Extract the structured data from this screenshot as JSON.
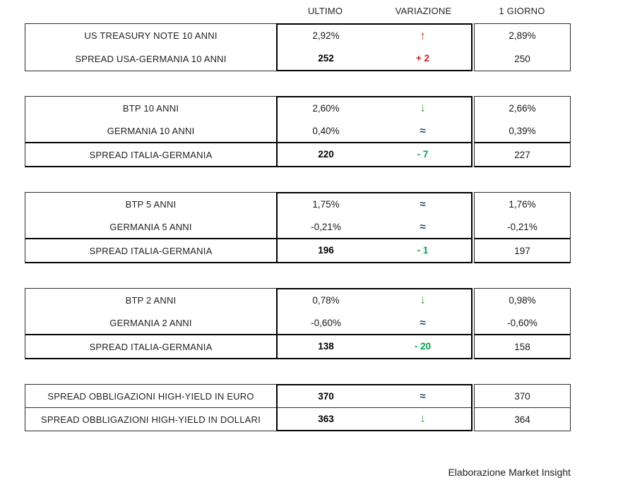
{
  "header": {
    "columns": [
      "ULTIMO",
      "VARIAZIONE",
      "1 GIORNO"
    ]
  },
  "colors": {
    "red": "#c9211e",
    "green": "#00a050",
    "green_arrow": "#3fa257",
    "blue": "#1f4e79"
  },
  "symbols": {
    "up": "↑",
    "down": "↓",
    "approx": "≈"
  },
  "blocks": [
    {
      "divider": false,
      "rows": [
        {
          "label": "US TREASURY NOTE 10 ANNI",
          "ultimo": "2,92%",
          "ultimo_bold": false,
          "var": "↑",
          "var_kind": "up",
          "var_color": "red",
          "giorno": "2,89%",
          "spread": false
        },
        {
          "label": "SPREAD USA-GERMANIA 10 ANNI",
          "ultimo": "252",
          "ultimo_bold": true,
          "var": "+ 2",
          "var_kind": "text",
          "var_color": "red",
          "giorno": "250",
          "spread": false
        }
      ]
    },
    {
      "divider": false,
      "rows": [
        {
          "label": "BTP 10 ANNI",
          "ultimo": "2,60%",
          "ultimo_bold": false,
          "var": "↓",
          "var_kind": "down",
          "var_color": "green_arrow",
          "giorno": "2,66%",
          "spread": false
        },
        {
          "label": "GERMANIA 10 ANNI",
          "ultimo": "0,40%",
          "ultimo_bold": false,
          "var": "≈",
          "var_kind": "approx",
          "var_color": "blue",
          "giorno": "0,39%",
          "spread": false
        },
        {
          "label": "SPREAD ITALIA-GERMANIA",
          "ultimo": "220",
          "ultimo_bold": true,
          "var": "- 7",
          "var_kind": "text",
          "var_color": "green",
          "giorno": "227",
          "spread": true
        }
      ]
    },
    {
      "divider": false,
      "rows": [
        {
          "label": "BTP 5 ANNI",
          "ultimo": "1,75%",
          "ultimo_bold": false,
          "var": "≈",
          "var_kind": "approx",
          "var_color": "blue",
          "giorno": "1,76%",
          "spread": false
        },
        {
          "label": "GERMANIA 5 ANNI",
          "ultimo": "-0,21%",
          "ultimo_bold": false,
          "var": "≈",
          "var_kind": "approx",
          "var_color": "blue",
          "giorno": "-0,21%",
          "spread": false
        },
        {
          "label": "SPREAD ITALIA-GERMANIA",
          "ultimo": "196",
          "ultimo_bold": true,
          "var": "- 1",
          "var_kind": "text",
          "var_color": "green",
          "giorno": "197",
          "spread": true
        }
      ]
    },
    {
      "divider": false,
      "rows": [
        {
          "label": "BTP 2 ANNI",
          "ultimo": "0,78%",
          "ultimo_bold": false,
          "var": "↓",
          "var_kind": "down",
          "var_color": "green_arrow",
          "giorno": "0,98%",
          "spread": false
        },
        {
          "label": "GERMANIA 2 ANNI",
          "ultimo": "-0,60%",
          "ultimo_bold": false,
          "var": "≈",
          "var_kind": "approx",
          "var_color": "blue",
          "giorno": "-0,60%",
          "spread": false
        },
        {
          "label": "SPREAD ITALIA-GERMANIA",
          "ultimo": "138",
          "ultimo_bold": true,
          "var": "- 20",
          "var_kind": "text",
          "var_color": "green",
          "giorno": "158",
          "spread": true
        }
      ]
    },
    {
      "divider": true,
      "rows": [
        {
          "label": "SPREAD OBBLIGAZIONI HIGH-YIELD IN EURO",
          "ultimo": "370",
          "ultimo_bold": true,
          "var": "≈",
          "var_kind": "approx",
          "var_color": "blue",
          "giorno": "370",
          "spread": false
        },
        {
          "label": "SPREAD OBBLIGAZIONI HIGH-YIELD IN DOLLARI",
          "ultimo": "363",
          "ultimo_bold": true,
          "var": "↓",
          "var_kind": "down",
          "var_color": "green_arrow",
          "giorno": "364",
          "spread": false
        }
      ]
    }
  ],
  "footer": "Elaborazione Market Insight"
}
